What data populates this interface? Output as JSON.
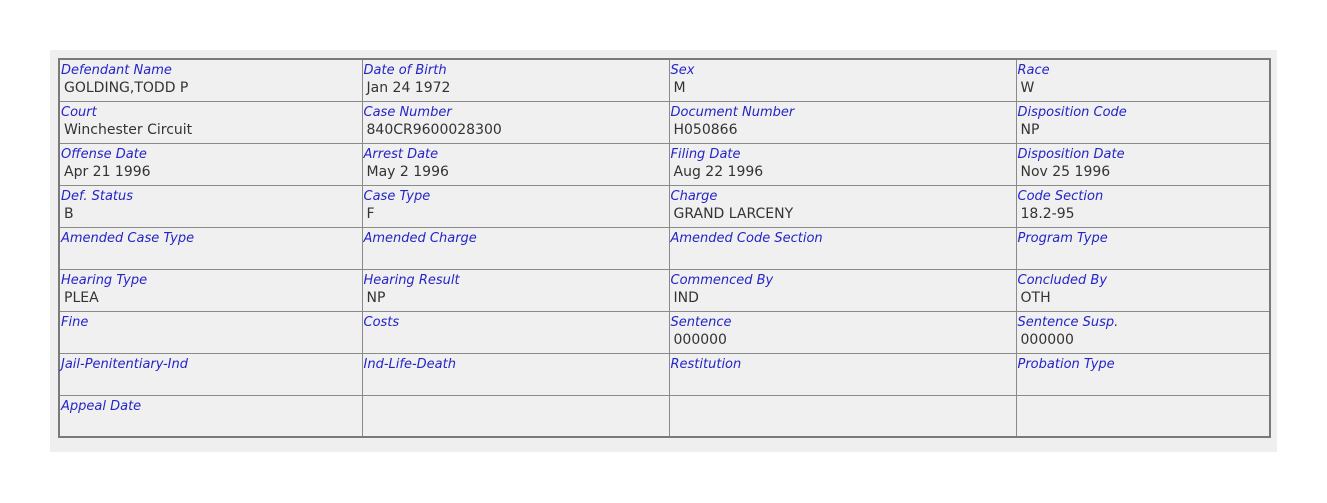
{
  "rows": [
    [
      {
        "label": "Defendant Name",
        "value": "GOLDING,TODD P"
      },
      {
        "label": "Date of Birth",
        "value": "Jan 24 1972"
      },
      {
        "label": "Sex",
        "value": "M"
      },
      {
        "label": "Race",
        "value": "W"
      }
    ],
    [
      {
        "label": "Court",
        "value": "Winchester Circuit"
      },
      {
        "label": "Case Number",
        "value": "840CR9600028300"
      },
      {
        "label": "Document Number",
        "value": "H050866"
      },
      {
        "label": "Disposition Code",
        "value": "NP"
      }
    ],
    [
      {
        "label": "Offense Date",
        "value": "Apr 21 1996"
      },
      {
        "label": "Arrest Date",
        "value": "May 2 1996"
      },
      {
        "label": "Filing Date",
        "value": "Aug 22 1996"
      },
      {
        "label": "Disposition Date",
        "value": "Nov 25 1996"
      }
    ],
    [
      {
        "label": "Def. Status",
        "value": "B"
      },
      {
        "label": "Case Type",
        "value": "F"
      },
      {
        "label": "Charge",
        "value": "GRAND LARCENY"
      },
      {
        "label": "Code Section",
        "value": "18.2-95"
      }
    ],
    [
      {
        "label": "Amended Case Type",
        "value": ""
      },
      {
        "label": "Amended Charge",
        "value": ""
      },
      {
        "label": "Amended Code Section",
        "value": ""
      },
      {
        "label": "Program Type",
        "value": ""
      }
    ],
    [
      {
        "label": "Hearing Type",
        "value": "PLEA"
      },
      {
        "label": "Hearing Result",
        "value": "NP"
      },
      {
        "label": "Commenced By",
        "value": "IND"
      },
      {
        "label": "Concluded By",
        "value": "OTH"
      }
    ],
    [
      {
        "label": "Fine",
        "value": ""
      },
      {
        "label": "Costs",
        "value": ""
      },
      {
        "label": "Sentence",
        "value": "000000"
      },
      {
        "label": "Sentence Susp.",
        "value": "000000"
      }
    ],
    [
      {
        "label": "Jail-Penitentiary-Ind",
        "value": ""
      },
      {
        "label": "Ind-Life-Death",
        "value": ""
      },
      {
        "label": "Restitution",
        "value": ""
      },
      {
        "label": "Probation Type",
        "value": ""
      }
    ],
    [
      {
        "label": "Appeal Date",
        "value": ""
      },
      {
        "label": "",
        "value": ""
      },
      {
        "label": "",
        "value": ""
      },
      {
        "label": "",
        "value": ""
      }
    ]
  ]
}
